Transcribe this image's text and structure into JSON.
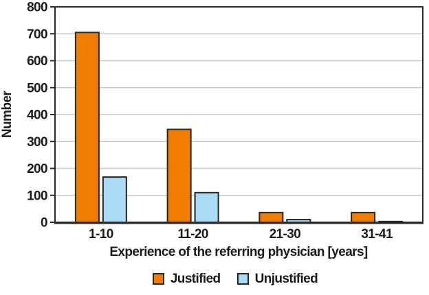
{
  "chart_data": {
    "type": "bar",
    "title": "",
    "categories": [
      "1-10",
      "11-20",
      "21-30",
      "31-41"
    ],
    "series": [
      {
        "name": "Justified",
        "color": "#F07D00",
        "values": [
          705,
          345,
          36,
          36
        ]
      },
      {
        "name": "Unjustified",
        "color": "#A9DBF4",
        "values": [
          168,
          110,
          10,
          3
        ]
      }
    ],
    "xlabel": "Experience of the referring physician [years]",
    "ylabel": "Number",
    "ylim": [
      0,
      800
    ],
    "ytick_step": 100,
    "yticks": [
      0,
      100,
      200,
      300,
      400,
      500,
      600,
      700,
      800
    ],
    "grid": true,
    "legend_position": "bottom-center",
    "colors": {
      "bar_border": "#262626",
      "grid_line": "#c9c9c9",
      "axis_line": "#2b2b2b",
      "text": "#1a1a1a",
      "background": "#ffffff"
    }
  }
}
